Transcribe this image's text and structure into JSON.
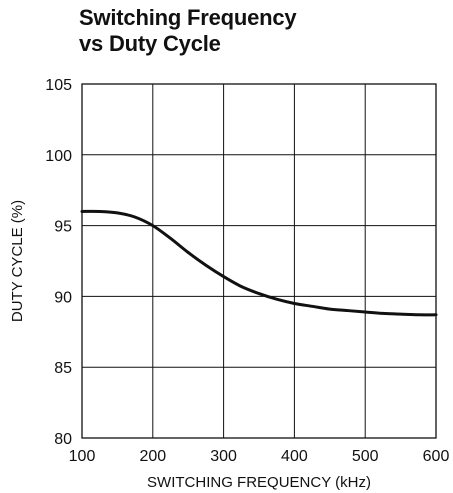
{
  "chart_data": {
    "type": "line",
    "title_lines": [
      "Switching Frequency",
      "vs Duty Cycle"
    ],
    "xlabel": "SWITCHING FREQUENCY (kHz)",
    "ylabel": "DUTY CYCLE (%)",
    "xlim": [
      100,
      600
    ],
    "ylim": [
      80,
      105
    ],
    "x_ticks": [
      100,
      200,
      300,
      400,
      500,
      600
    ],
    "y_ticks": [
      80,
      85,
      90,
      95,
      100,
      105
    ],
    "x_tick_labels": [
      "100",
      "200",
      "300",
      "400",
      "500",
      "600"
    ],
    "y_tick_labels": [
      "80",
      "85",
      "90",
      "95",
      "100",
      "105"
    ],
    "grid": true,
    "legend": "none",
    "line_color": "#111111",
    "series": [
      {
        "x": [
          100,
          125,
          150,
          175,
          200,
          225,
          250,
          275,
          300,
          325,
          350,
          375,
          400,
          425,
          450,
          475,
          500,
          525,
          550,
          575,
          600
        ],
        "y": [
          96.0,
          96.0,
          95.9,
          95.6,
          95.0,
          94.1,
          93.1,
          92.2,
          91.4,
          90.7,
          90.2,
          89.8,
          89.5,
          89.3,
          89.1,
          89.0,
          88.9,
          88.8,
          88.75,
          88.7,
          88.7
        ]
      }
    ]
  }
}
